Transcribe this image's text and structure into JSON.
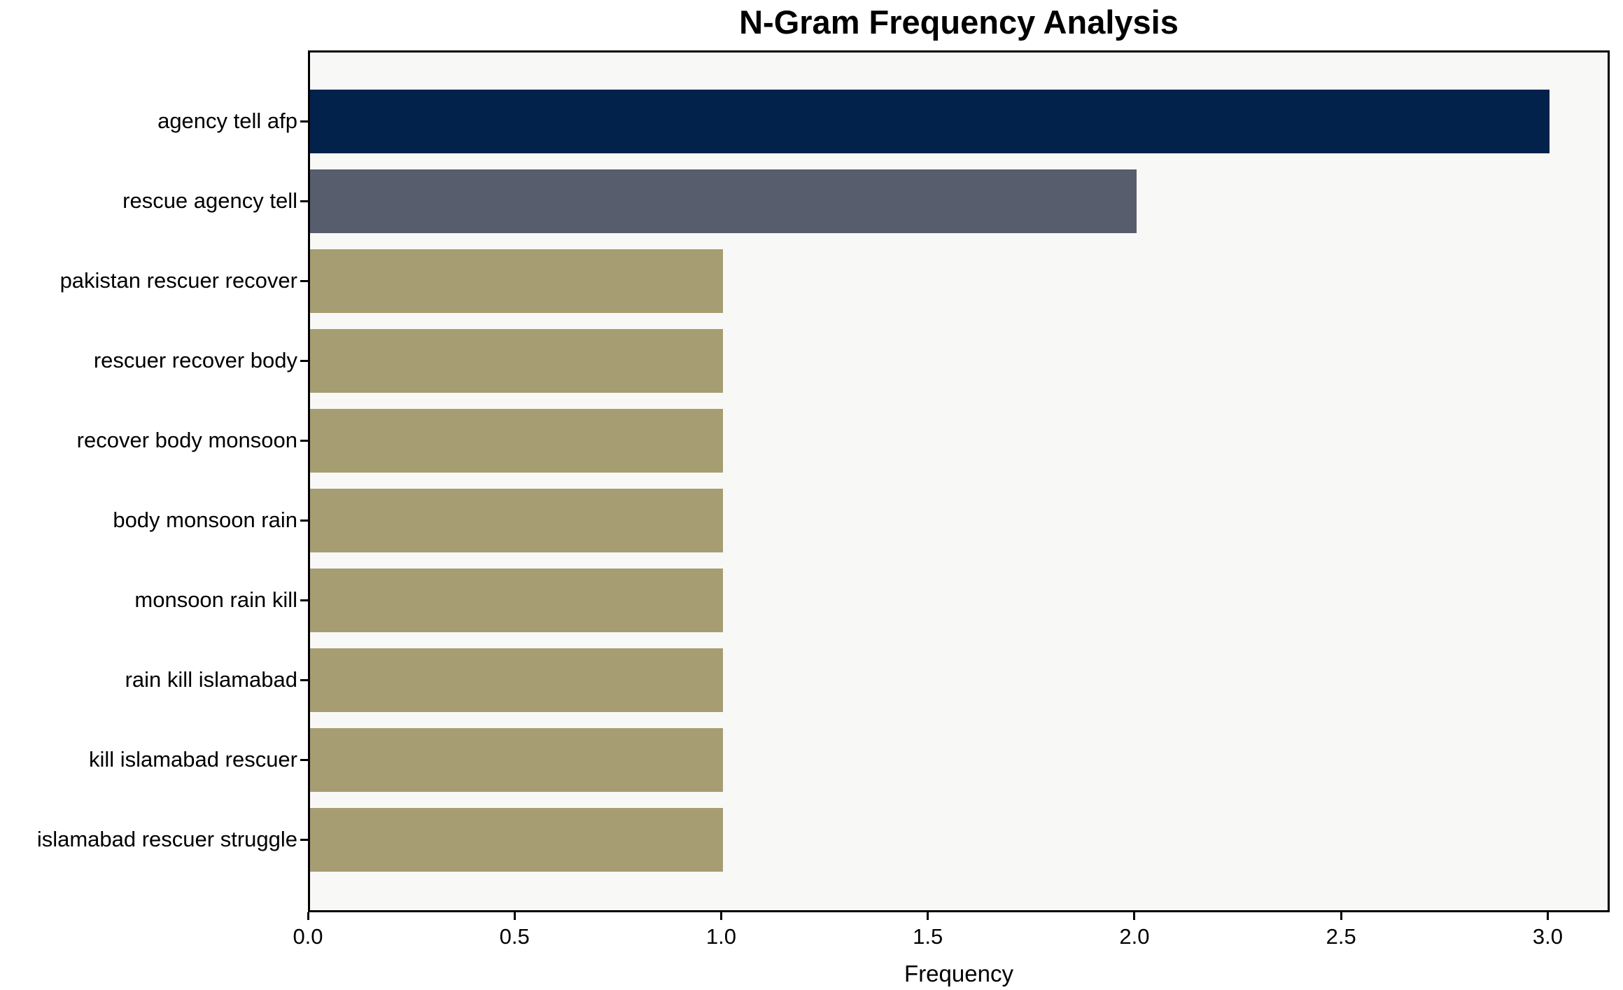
{
  "chart_data": {
    "type": "bar",
    "orientation": "horizontal",
    "title": "N-Gram Frequency Analysis",
    "xlabel": "Frequency",
    "ylabel": "",
    "categories": [
      "agency tell afp",
      "rescue agency tell",
      "pakistan rescuer recover",
      "rescuer recover body",
      "recover body monsoon",
      "body monsoon rain",
      "monsoon rain kill",
      "rain kill islamabad",
      "kill islamabad rescuer",
      "islamabad rescuer struggle"
    ],
    "values": [
      3,
      2,
      1,
      1,
      1,
      1,
      1,
      1,
      1,
      1
    ],
    "bar_colors": [
      "#02224C",
      "#575D6D",
      "#A69D72",
      "#A69D72",
      "#A69D72",
      "#A69D72",
      "#A69D72",
      "#A69D72",
      "#A69D72",
      "#A69D72"
    ],
    "xlim": [
      0,
      3.15
    ],
    "xtick_values": [
      0,
      0.5,
      1,
      1.5,
      2,
      2.5,
      3
    ],
    "xtick_labels": [
      "0.0",
      "0.5",
      "1.0",
      "1.5",
      "2.0",
      "2.5",
      "3.0"
    ],
    "grid": false,
    "legend_position": "none",
    "colors": {
      "plot_background": "#F8F8F7",
      "figure_background": "#FFFFFF",
      "axis": "#000000",
      "text": "#000000"
    }
  }
}
